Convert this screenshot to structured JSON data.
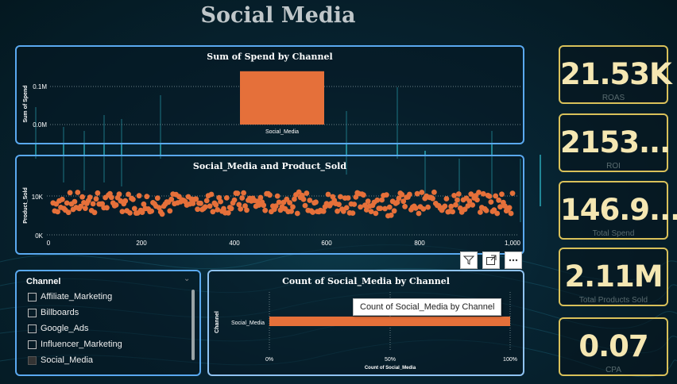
{
  "page": {
    "title": "Social Media"
  },
  "spend_chart": {
    "title": "Sum of Spend by Channel",
    "ylabel": "Sum of Spend",
    "yticks": [
      "0.1M",
      "0.0M"
    ],
    "category": "Social_Media"
  },
  "scatter_chart": {
    "title": "Social_Media and Product_Sold",
    "ylabel": "Product_Sold",
    "yticks": [
      "10K",
      "0K"
    ],
    "xticks": [
      "0",
      "200",
      "400",
      "600",
      "800",
      "1,000"
    ]
  },
  "slicer": {
    "title": "Channel",
    "items": [
      {
        "label": "Affiliate_Marketing",
        "checked": false
      },
      {
        "label": "Billboards",
        "checked": false
      },
      {
        "label": "Google_Ads",
        "checked": false
      },
      {
        "label": "Influencer_Marketing",
        "checked": false
      },
      {
        "label": "Social_Media",
        "checked": true
      }
    ]
  },
  "count_chart": {
    "title": "Count of Social_Media by Channel",
    "ylabel": "Channel",
    "category": "Social_Media",
    "xticks": [
      "0%",
      "50%",
      "100%"
    ],
    "xlabel": "Count of Social_Media",
    "tooltip": "Count of Social_Media by Channel"
  },
  "visual_header": {
    "icons": [
      "filter-icon",
      "focus-mode-icon",
      "more-options-icon"
    ]
  },
  "kpis": [
    {
      "value": "21.53K",
      "label": "ROAS"
    },
    {
      "value": "2153...",
      "label": "ROI"
    },
    {
      "value": "146.9...",
      "label": "Total Spend"
    },
    {
      "value": "2.11M",
      "label": "Total Products Sold"
    },
    {
      "value": "0.07",
      "label": "CPA"
    }
  ],
  "colors": {
    "bar": "#e5703a",
    "border": "#5aa9f0",
    "kpi_border": "#d9c15a",
    "kpi_text": "#f5e7b2"
  },
  "chart_data": [
    {
      "type": "bar",
      "title": "Sum of Spend by Channel",
      "categories": [
        "Social_Media"
      ],
      "values": [
        0.14
      ],
      "ylabel": "Sum of Spend",
      "units": "M"
    },
    {
      "type": "scatter",
      "title": "Social_Media and Product_Sold",
      "ylabel": "Product_Sold",
      "xlim": [
        0,
        1000
      ],
      "ylim": [
        0,
        15000
      ],
      "y_range_observed": [
        3000,
        12000
      ],
      "n_points_estimated": 300
    },
    {
      "type": "bar",
      "title": "Count of Social_Media by Channel",
      "categories": [
        "Social_Media"
      ],
      "values": [
        100
      ],
      "xlabel": "Count of Social_Media",
      "ylabel": "Channel",
      "units": "%"
    }
  ]
}
